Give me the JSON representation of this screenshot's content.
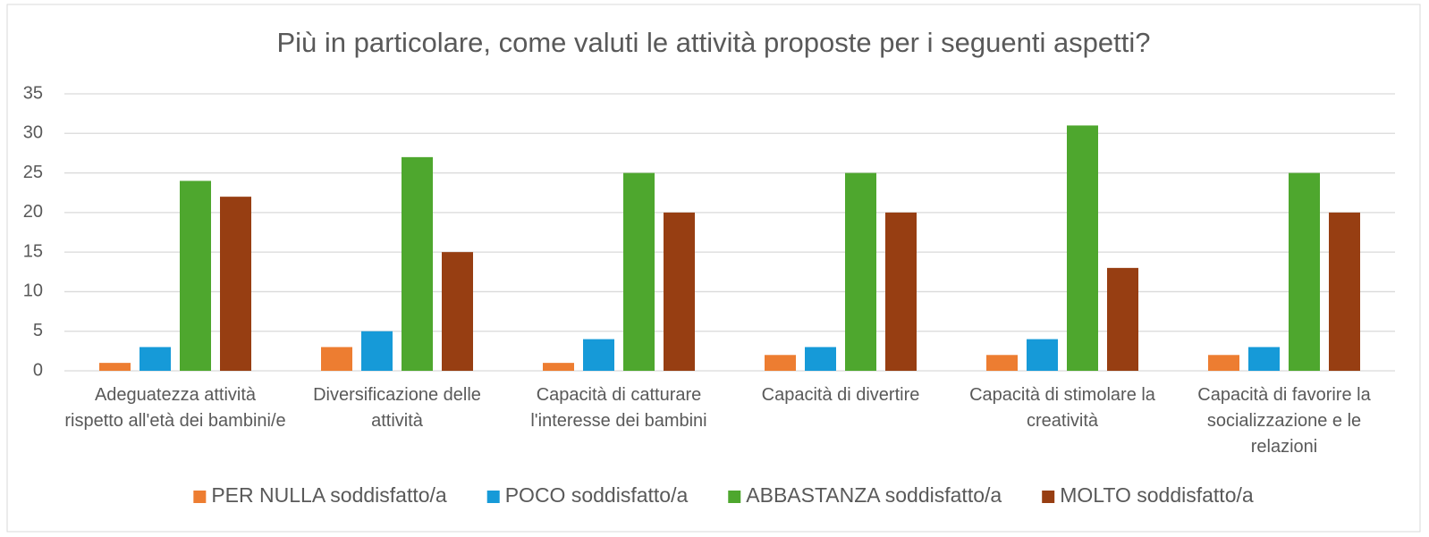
{
  "chart_data": {
    "type": "bar",
    "title": "Più in particolare, come valuti le attività proposte per i seguenti aspetti?",
    "categories": [
      "Adeguatezza attività rispetto all'età dei bambini/e",
      "Diversificazione delle attività",
      "Capacità di catturare l'interesse dei bambini",
      "Capacità di divertire",
      "Capacità di stimolare la creatività",
      "Capacità di favorire la socializzazione e le relazioni"
    ],
    "series": [
      {
        "name": "PER NULLA soddisfatto/a",
        "color": "#ed7d31",
        "values": [
          1,
          3,
          1,
          2,
          2,
          2
        ]
      },
      {
        "name": "POCO soddisfatto/a",
        "color": "#169ad8",
        "values": [
          3,
          5,
          4,
          3,
          4,
          3
        ]
      },
      {
        "name": "ABBASTANZA soddisfatto/a",
        "color": "#4ea72e",
        "values": [
          24,
          27,
          25,
          25,
          31,
          25
        ]
      },
      {
        "name": "MOLTO soddisfatto/a",
        "color": "#973e12",
        "values": [
          22,
          15,
          20,
          20,
          13,
          20
        ]
      }
    ],
    "ylim": [
      0,
      35
    ],
    "yticks": [
      0,
      5,
      10,
      15,
      20,
      25,
      30,
      35
    ],
    "grid": true,
    "legend": "bottom"
  }
}
